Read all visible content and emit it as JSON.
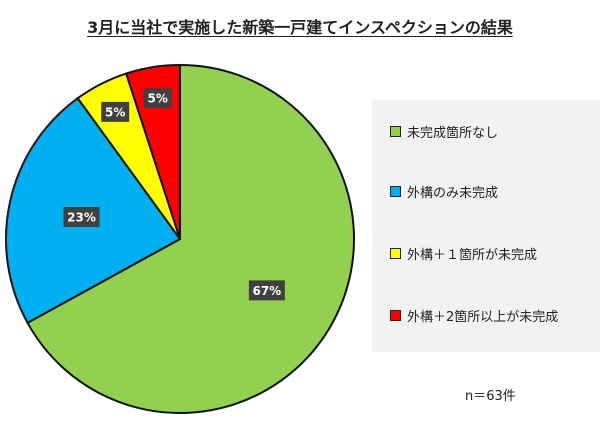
{
  "chart_data": {
    "type": "pie",
    "title": "3月に当社で実施した新築一戸建てインスペクションの結果",
    "slices": [
      {
        "label": "未完成箇所なし",
        "value": 67,
        "value_label": "67%",
        "color": "#92d050"
      },
      {
        "label": "外構のみ未完成",
        "value": 23,
        "value_label": "23%",
        "color": "#00b0f0"
      },
      {
        "label": "外構＋１箇所が未完成",
        "value": 5,
        "value_label": "5%",
        "color": "#ffff00"
      },
      {
        "label": "外構＋2箇所以上が未完成",
        "value": 5,
        "value_label": "5%",
        "color": "#ff0000"
      }
    ],
    "legend_position": "right",
    "note": "n＝63件"
  }
}
